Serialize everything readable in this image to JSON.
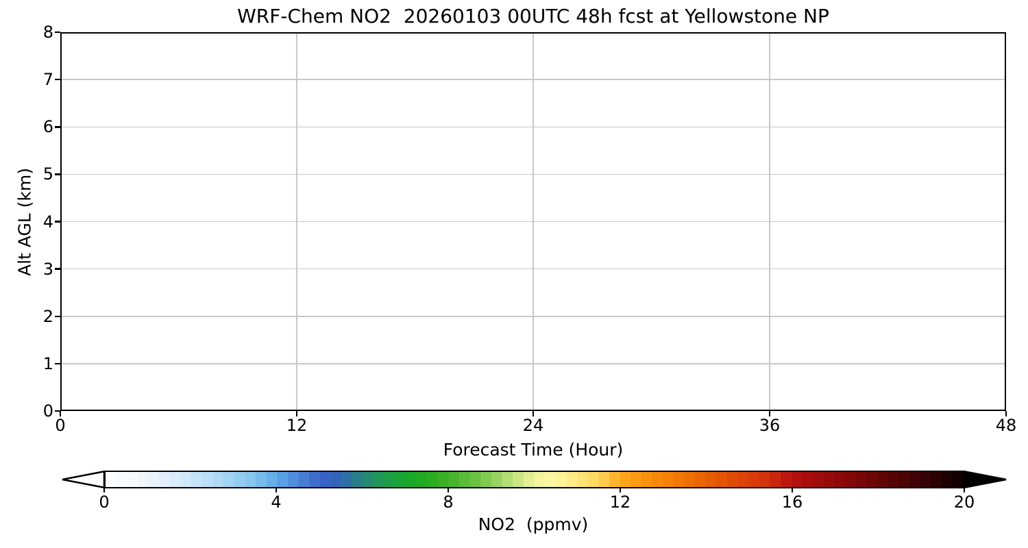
{
  "figure": {
    "title": "WRF-Chem NO2  20260103 00UTC 48h fcst at Yellowstone NP"
  },
  "x_axis": {
    "label": "Forecast Time (Hour)",
    "ticks": [
      "0",
      "12",
      "24",
      "36",
      "48"
    ],
    "tick_values": [
      0,
      12,
      24,
      36,
      48
    ],
    "range": [
      0,
      48
    ],
    "gridline_values": [
      12,
      24,
      36
    ]
  },
  "y_axis": {
    "label": "Alt AGL (km)",
    "ticks": [
      "0",
      "1",
      "2",
      "3",
      "4",
      "5",
      "6",
      "7",
      "8"
    ],
    "tick_values": [
      0,
      1,
      2,
      3,
      4,
      5,
      6,
      7,
      8
    ],
    "range": [
      0,
      8
    ],
    "gridline_values": [
      1,
      2,
      3,
      4,
      5,
      6,
      7
    ]
  },
  "colorbar": {
    "label": "NO2  (ppmv)",
    "ticks": [
      "0",
      "4",
      "8",
      "12",
      "16",
      "20"
    ],
    "tick_values": [
      0,
      4,
      8,
      12,
      16,
      20
    ],
    "range": [
      0,
      20
    ],
    "extend": "both",
    "under_color": "#ffffff",
    "over_color": "#000000",
    "band_width": 0.25,
    "gradient_stops": [
      [
        0,
        "#ffffff"
      ],
      [
        0.5,
        "#f7fbfe"
      ],
      [
        1,
        "#ecf5fd"
      ],
      [
        1.5,
        "#ddeefb"
      ],
      [
        2,
        "#cce6f9"
      ],
      [
        2.5,
        "#b5dcf6"
      ],
      [
        3,
        "#9bd0f2"
      ],
      [
        3.5,
        "#7fc2ee"
      ],
      [
        4,
        "#5da9e6"
      ],
      [
        4.5,
        "#4a86d8"
      ],
      [
        5,
        "#3a64ca"
      ],
      [
        5.3,
        "#3360c0"
      ],
      [
        5.6,
        "#2e6fa8"
      ],
      [
        6,
        "#27867b"
      ],
      [
        6.5,
        "#1f9b4e"
      ],
      [
        7,
        "#15a82c"
      ],
      [
        7.5,
        "#25aa1e"
      ],
      [
        8,
        "#41b22a"
      ],
      [
        8.5,
        "#62bf3c"
      ],
      [
        9,
        "#8bcf58"
      ],
      [
        9.5,
        "#c0e37c"
      ],
      [
        10,
        "#eef39c"
      ],
      [
        10.3,
        "#f9f7a3"
      ],
      [
        10.6,
        "#fdf399"
      ],
      [
        11,
        "#ffe87e"
      ],
      [
        11.5,
        "#ffd65b"
      ],
      [
        12,
        "#ffab1f"
      ],
      [
        12.5,
        "#fb9610"
      ],
      [
        13,
        "#f68508"
      ],
      [
        13.5,
        "#f07300"
      ],
      [
        14,
        "#e96100"
      ],
      [
        14.5,
        "#e25004"
      ],
      [
        15,
        "#d94008"
      ],
      [
        15.5,
        "#cf2e0c"
      ],
      [
        16,
        "#b71110"
      ],
      [
        16.5,
        "#a50b0b"
      ],
      [
        17,
        "#920909"
      ],
      [
        17.5,
        "#7e0707"
      ],
      [
        18,
        "#670505"
      ],
      [
        18.5,
        "#510404"
      ],
      [
        19,
        "#3b0303"
      ],
      [
        19.5,
        "#240202"
      ],
      [
        20,
        "#0b0101"
      ]
    ]
  },
  "colors": {
    "grid": "#c8c8c8",
    "spine": "#000000",
    "text": "#000000",
    "plot_bg": "#ffffff",
    "fig_bg": "#ffffff"
  },
  "chart_data": {
    "type": "heatmap",
    "title": "WRF-Chem NO2  20260103 00UTC 48h fcst at Yellowstone NP",
    "xlabel": "Forecast Time (Hour)",
    "ylabel": "Alt AGL (km)",
    "colorbar_label": "NO2  (ppmv)",
    "xlim": [
      0,
      48
    ],
    "ylim": [
      0,
      8
    ],
    "x_ticks": [
      0,
      12,
      24,
      36,
      48
    ],
    "y_ticks": [
      0,
      1,
      2,
      3,
      4,
      5,
      6,
      7,
      8
    ],
    "colorbar_ticks": [
      0,
      4,
      8,
      12,
      16,
      20
    ],
    "colorbar_range": [
      0,
      20
    ],
    "colorbar_extend": "both",
    "grid": true,
    "legend_position": "colorbar-bottom",
    "values": "uniform, approximately 0 ppmv at every forecast hour (0-48 h) and altitude (0-8 km); the time-height cross-section renders entirely white with no visible NO2 structure"
  }
}
